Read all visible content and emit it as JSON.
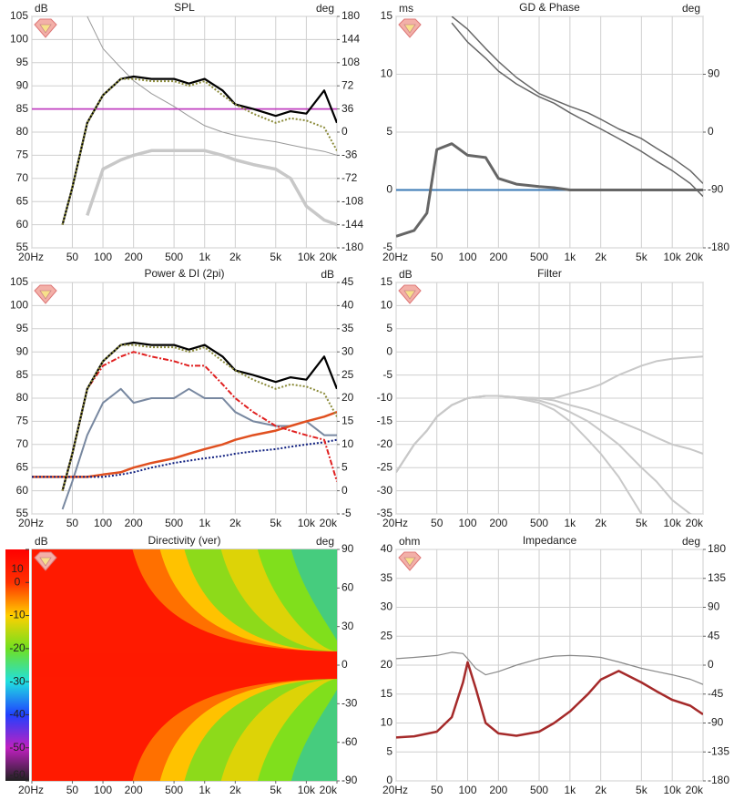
{
  "chart_data": [
    {
      "type": "line",
      "title": "SPL",
      "ylabel": "dB",
      "y2label": "deg",
      "xscale": "log",
      "x": [
        20,
        30,
        40,
        50,
        70,
        100,
        150,
        200,
        300,
        500,
        700,
        1000,
        1500,
        2000,
        3000,
        5000,
        7000,
        10000,
        15000,
        20000
      ],
      "xlim": [
        20,
        20000
      ],
      "xticks": [
        {
          "value": 20,
          "label": "20Hz"
        },
        50,
        100,
        200,
        500,
        {
          "value": 1000,
          "label": "1k"
        },
        {
          "value": 2000,
          "label": "2k"
        },
        {
          "value": 5000,
          "label": "5k"
        },
        {
          "value": 10000,
          "label": "10k"
        },
        {
          "value": 20000,
          "label": "20k"
        }
      ],
      "ylim": [
        55,
        105
      ],
      "yticks": [
        55,
        60,
        65,
        70,
        75,
        80,
        85,
        90,
        95,
        100,
        105
      ],
      "y2lim": [
        -180,
        180
      ],
      "y2ticks": [
        -180,
        -144,
        -108,
        -72,
        -36,
        0,
        36,
        72,
        108,
        144,
        180
      ],
      "grid": true,
      "series": [
        {
          "color": "#c8c8c8",
          "width": 3.5,
          "values": [
            null,
            null,
            null,
            null,
            62,
            72,
            74,
            75,
            76,
            76,
            76,
            76,
            75,
            74,
            73,
            72,
            70,
            64,
            61,
            60
          ]
        },
        {
          "color": "#999999",
          "width": 1,
          "axis": "y2",
          "values": [
            null,
            null,
            null,
            null,
            180,
            130,
            100,
            80,
            60,
            40,
            25,
            10,
            0,
            -5,
            -10,
            -15,
            -20,
            -25,
            -30,
            -36
          ]
        },
        {
          "color": "#c040c0",
          "width": 1.8,
          "values": [
            85,
            85,
            85,
            85,
            85,
            85,
            85,
            85,
            85,
            85,
            85,
            85,
            85,
            85,
            85,
            85,
            85,
            85,
            85,
            85
          ]
        },
        {
          "color": "#000000",
          "width": 2.2,
          "values": [
            null,
            null,
            60,
            68,
            82,
            88,
            91.5,
            92,
            91.5,
            91.5,
            90.5,
            91.5,
            89,
            86,
            85,
            83.5,
            84.5,
            84,
            89,
            82
          ]
        },
        {
          "color": "#8b8b3a",
          "width": 2,
          "dash": "dotted",
          "values": [
            null,
            null,
            60,
            68,
            82,
            88,
            91.5,
            91.5,
            91,
            91,
            90,
            91,
            88,
            86,
            84,
            82,
            83,
            82.5,
            81,
            76
          ]
        }
      ]
    },
    {
      "type": "line",
      "title": "GD & Phase",
      "ylabel": "ms",
      "y2label": "deg",
      "xscale": "log",
      "x": [
        20,
        30,
        40,
        50,
        70,
        100,
        150,
        200,
        300,
        500,
        700,
        1000,
        1500,
        2000,
        3000,
        5000,
        7000,
        10000,
        15000,
        20000
      ],
      "xlim": [
        20,
        20000
      ],
      "xticks": [
        {
          "value": 20,
          "label": "20Hz"
        },
        50,
        100,
        200,
        500,
        {
          "value": 1000,
          "label": "1k"
        },
        {
          "value": 2000,
          "label": "2k"
        },
        {
          "value": 5000,
          "label": "5k"
        },
        {
          "value": 10000,
          "label": "10k"
        },
        {
          "value": 20000,
          "label": "20k"
        }
      ],
      "ylim": [
        -5,
        15
      ],
      "yticks": [
        -5,
        0,
        5,
        10,
        15
      ],
      "y2lim": [
        -180,
        180
      ],
      "y2ticks": [
        -180,
        -90,
        0,
        90
      ],
      "grid": true,
      "series": [
        {
          "color": "#666666",
          "width": 1.5,
          "axis": "y2",
          "values": [
            null,
            null,
            null,
            null,
            180,
            160,
            130,
            110,
            85,
            60,
            50,
            40,
            30,
            20,
            5,
            -10,
            -25,
            -40,
            -60,
            -80
          ]
        },
        {
          "color": "#666666",
          "width": 1.5,
          "axis": "y2",
          "values": [
            null,
            null,
            null,
            null,
            170,
            140,
            115,
            95,
            75,
            55,
            45,
            30,
            15,
            5,
            -10,
            -30,
            -45,
            -60,
            -80,
            -100
          ]
        },
        {
          "color": "#3a78b5",
          "width": 2,
          "values": [
            0,
            0,
            0,
            0,
            0,
            0,
            0,
            0,
            0,
            0,
            0,
            0,
            0,
            0,
            0,
            0,
            0,
            0,
            0,
            0
          ]
        },
        {
          "color": "#666666",
          "width": 3,
          "values": [
            -4,
            -3.5,
            -2,
            3.5,
            4,
            3,
            2.8,
            1,
            0.5,
            0.3,
            0.2,
            0,
            0,
            0,
            0,
            0,
            0,
            0,
            0,
            0
          ]
        }
      ]
    },
    {
      "type": "line",
      "title": "Power & DI (2pi)",
      "y2label": "dB",
      "xscale": "log",
      "x": [
        20,
        30,
        40,
        50,
        70,
        100,
        150,
        200,
        300,
        500,
        700,
        1000,
        1500,
        2000,
        3000,
        5000,
        7000,
        10000,
        15000,
        20000
      ],
      "xlim": [
        20,
        20000
      ],
      "xticks": [
        {
          "value": 20,
          "label": "20Hz"
        },
        50,
        100,
        200,
        500,
        {
          "value": 1000,
          "label": "1k"
        },
        {
          "value": 2000,
          "label": "2k"
        },
        {
          "value": 5000,
          "label": "5k"
        },
        {
          "value": 10000,
          "label": "10k"
        },
        {
          "value": 20000,
          "label": "20k"
        }
      ],
      "ylim": [
        55,
        105
      ],
      "yticks": [
        55,
        60,
        65,
        70,
        75,
        80,
        85,
        90,
        95,
        100,
        105
      ],
      "y2lim": [
        -5,
        45
      ],
      "y2ticks": [
        -5,
        0,
        5,
        10,
        15,
        20,
        25,
        30,
        35,
        40,
        45
      ],
      "grid": true,
      "series": [
        {
          "color": "#7888a0",
          "width": 2,
          "values": [
            null,
            null,
            56,
            62,
            72,
            79,
            82,
            79,
            80,
            80,
            82,
            80,
            80,
            77,
            75,
            74,
            74,
            75,
            72,
            72
          ]
        },
        {
          "color": "#e05020",
          "width": 2.5,
          "axis": "y2",
          "values": [
            3,
            3,
            3,
            3,
            3,
            3.5,
            4,
            5,
            6,
            7,
            8,
            9,
            10,
            11,
            12,
            13,
            14,
            15,
            16,
            17
          ]
        },
        {
          "color": "#102080",
          "width": 2,
          "dash": "dotted",
          "axis": "y2",
          "values": [
            3,
            3,
            3,
            3,
            3,
            3,
            3.5,
            4,
            5,
            6,
            6.5,
            7,
            7.5,
            8,
            8.5,
            9,
            9.5,
            10,
            10.5,
            11
          ]
        },
        {
          "color": "#e02020",
          "width": 2,
          "dash": "dashdot",
          "values": [
            null,
            null,
            60,
            68,
            82,
            87,
            89,
            90,
            89,
            88,
            87,
            87,
            83,
            80,
            77,
            74,
            73,
            72,
            71,
            62
          ]
        },
        {
          "color": "#000000",
          "width": 2.2,
          "values": [
            null,
            null,
            60,
            68,
            82,
            88,
            91.5,
            92,
            91.5,
            91.5,
            90.5,
            91.5,
            89,
            86,
            85,
            83.5,
            84.5,
            84,
            89,
            82
          ]
        },
        {
          "color": "#8b8b3a",
          "width": 2,
          "dash": "dotted",
          "values": [
            null,
            null,
            60,
            68,
            82,
            88,
            91.5,
            91.5,
            91,
            91,
            90,
            91,
            88,
            86,
            84,
            82,
            83,
            82.5,
            81,
            76
          ]
        }
      ]
    },
    {
      "type": "line",
      "title": "Filter",
      "ylabel": "dB",
      "xscale": "log",
      "x": [
        20,
        30,
        40,
        50,
        70,
        100,
        150,
        200,
        300,
        500,
        700,
        1000,
        1500,
        2000,
        3000,
        5000,
        7000,
        10000,
        15000,
        20000
      ],
      "xlim": [
        20,
        20000
      ],
      "xticks": [
        {
          "value": 20,
          "label": "20Hz"
        },
        50,
        100,
        200,
        500,
        {
          "value": 1000,
          "label": "1k"
        },
        {
          "value": 2000,
          "label": "2k"
        },
        {
          "value": 5000,
          "label": "5k"
        },
        {
          "value": 10000,
          "label": "10k"
        },
        {
          "value": 20000,
          "label": "20k"
        }
      ],
      "ylim": [
        -35,
        15
      ],
      "yticks": [
        -35,
        -30,
        -25,
        -20,
        -15,
        -10,
        -5,
        0,
        5,
        10,
        15
      ],
      "grid": true,
      "series": [
        {
          "color": "#c8c8c8",
          "width": 2,
          "values": [
            -26,
            -20,
            -17,
            -14,
            -11.5,
            -10,
            -9.5,
            -9.5,
            -9.8,
            -10,
            -10,
            -9,
            -8,
            -7,
            -5,
            -3,
            -2,
            -1.5,
            -1.2,
            -1
          ]
        },
        {
          "color": "#c8c8c8",
          "width": 2,
          "values": [
            -26,
            -20,
            -17,
            -14,
            -11.5,
            -10,
            -9.5,
            -9.5,
            -9.8,
            -10,
            -10.5,
            -11.5,
            -12.5,
            -13.5,
            -15,
            -17,
            -18.5,
            -20,
            -21,
            -22
          ]
        },
        {
          "color": "#c8c8c8",
          "width": 2,
          "values": [
            -26,
            -20,
            -17,
            -14,
            -11.5,
            -10,
            -9.5,
            -9.5,
            -9.8,
            -10.5,
            -11.5,
            -13,
            -15,
            -17,
            -20,
            -25,
            -28,
            -32,
            -35,
            -36
          ]
        },
        {
          "color": "#c8c8c8",
          "width": 2,
          "values": [
            -26,
            -20,
            -17,
            -14,
            -11.5,
            -10,
            -9.5,
            -9.5,
            -10,
            -11,
            -12.5,
            -15,
            -19,
            -22,
            -27,
            -35,
            -40,
            null,
            null,
            null
          ]
        }
      ]
    },
    {
      "type": "heatmap",
      "title": "Directivity (ver)",
      "y2label": "deg",
      "xscale": "log",
      "xlim": [
        20,
        20000
      ],
      "xticks": [
        {
          "value": 20,
          "label": "20Hz"
        },
        50,
        100,
        200,
        500,
        {
          "value": 1000,
          "label": "1k"
        },
        {
          "value": 2000,
          "label": "2k"
        },
        {
          "value": 5000,
          "label": "5k"
        },
        {
          "value": 10000,
          "label": "10k"
        },
        {
          "value": 20000,
          "label": "20k"
        }
      ],
      "y2lim": [
        -90,
        90
      ],
      "y2ticks": [
        -90,
        -60,
        -30,
        0,
        30,
        60,
        90
      ],
      "grid": false,
      "colorbar": {
        "label": "dB",
        "lim": [
          -60,
          10
        ],
        "ticks": [
          10,
          0,
          -10,
          -20,
          -30,
          -40,
          -50,
          -60
        ],
        "colors": [
          "#ff0000",
          "#ff3000",
          "#ffd000",
          "#70e020",
          "#20e0e0",
          "#2040ff",
          "#c020c0",
          "#202020"
        ]
      }
    },
    {
      "type": "line",
      "title": "Impedance",
      "ylabel": "ohm",
      "y2label": "deg",
      "xscale": "log",
      "x": [
        20,
        30,
        50,
        70,
        90,
        100,
        120,
        150,
        200,
        300,
        500,
        700,
        1000,
        1500,
        2000,
        3000,
        5000,
        7000,
        10000,
        15000,
        20000
      ],
      "xlim": [
        20,
        20000
      ],
      "xticks": [
        {
          "value": 20,
          "label": "20Hz"
        },
        50,
        100,
        200,
        500,
        {
          "value": 1000,
          "label": "1k"
        },
        {
          "value": 2000,
          "label": "2k"
        },
        {
          "value": 5000,
          "label": "5k"
        },
        {
          "value": 10000,
          "label": "10k"
        },
        {
          "value": 20000,
          "label": "20k"
        }
      ],
      "ylim": [
        0,
        40
      ],
      "yticks": [
        0,
        5,
        10,
        15,
        20,
        25,
        30,
        35,
        40
      ],
      "y2lim": [
        -180,
        180
      ],
      "y2ticks": [
        -180,
        -135,
        -90,
        -45,
        0,
        45,
        90,
        135,
        180
      ],
      "grid": true,
      "series": [
        {
          "color": "#888888",
          "width": 1.2,
          "axis": "y2",
          "values": [
            10,
            12,
            15,
            20,
            18,
            10,
            -5,
            -15,
            -10,
            0,
            10,
            14,
            15,
            14,
            12,
            5,
            -5,
            -10,
            -15,
            -22,
            -30
          ]
        },
        {
          "color": "#a52a2a",
          "width": 2.5,
          "values": [
            7.5,
            7.7,
            8.5,
            11,
            17,
            20.5,
            16,
            10,
            8.2,
            7.8,
            8.5,
            10,
            12,
            15,
            17.5,
            19,
            17,
            15.5,
            14,
            13,
            11.5
          ]
        }
      ]
    }
  ]
}
